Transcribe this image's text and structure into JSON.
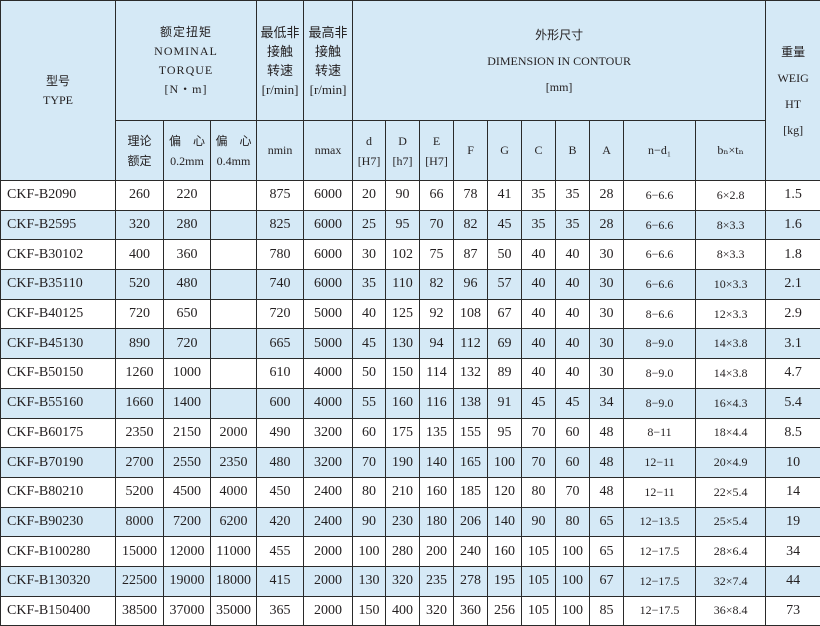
{
  "header": {
    "type_cn": "型号",
    "type_en": "TYPE",
    "torque_cn": "额定扭矩",
    "torque_en1": "NOMINAL",
    "torque_en2": "TORQUE",
    "torque_unit": "[N・m]",
    "nmin_cn1": "最低非",
    "nmin_cn2": "接触",
    "nmin_cn3": "转速",
    "nmin_unit": "[r/min]",
    "nmax_cn1": "最高非",
    "nmax_cn2": "接触",
    "nmax_cn3": "转速",
    "nmax_unit": "[r/min]",
    "dim_cn": "外形尺寸",
    "dim_en": "DIMENSION IN CONTOUR",
    "dim_unit": "[mm]",
    "weight_cn": "重量",
    "weight_en1": "WEIG",
    "weight_en2": "HT",
    "weight_unit": "[kg]",
    "sub": {
      "t_theory1": "理论",
      "t_theory2": "额定",
      "t_ecc1": "偏　心",
      "t_ecc1b": "0.2mm",
      "t_ecc2": "偏　心",
      "t_ecc2b": "0.4mm",
      "nmin": "nmin",
      "nmax": "nmax",
      "d": "d",
      "d_tol": "[H7]",
      "D": "D",
      "D_tol": "[h7]",
      "E": "E",
      "E_tol": "[H7]",
      "F": "F",
      "G": "G",
      "C": "C",
      "B": "B",
      "A": "A",
      "nd": "n−d₁",
      "bt": "bₙ×tₙ"
    }
  },
  "rows": [
    [
      "CKF-B2090",
      "260",
      "220",
      "",
      "875",
      "6000",
      "20",
      "90",
      "66",
      "78",
      "41",
      "35",
      "35",
      "28",
      "6−6.6",
      "6×2.8",
      "1.5"
    ],
    [
      "CKF-B2595",
      "320",
      "280",
      "",
      "825",
      "6000",
      "25",
      "95",
      "70",
      "82",
      "45",
      "35",
      "35",
      "28",
      "6−6.6",
      "8×3.3",
      "1.6"
    ],
    [
      "CKF-B30102",
      "400",
      "360",
      "",
      "780",
      "6000",
      "30",
      "102",
      "75",
      "87",
      "50",
      "40",
      "40",
      "30",
      "6−6.6",
      "8×3.3",
      "1.8"
    ],
    [
      "CKF-B35110",
      "520",
      "480",
      "",
      "740",
      "6000",
      "35",
      "110",
      "82",
      "96",
      "57",
      "40",
      "40",
      "30",
      "6−6.6",
      "10×3.3",
      "2.1"
    ],
    [
      "CKF-B40125",
      "720",
      "650",
      "",
      "720",
      "5000",
      "40",
      "125",
      "92",
      "108",
      "67",
      "40",
      "40",
      "30",
      "8−6.6",
      "12×3.3",
      "2.9"
    ],
    [
      "CKF-B45130",
      "890",
      "720",
      "",
      "665",
      "5000",
      "45",
      "130",
      "94",
      "112",
      "69",
      "40",
      "40",
      "30",
      "8−9.0",
      "14×3.8",
      "3.1"
    ],
    [
      "CKF-B50150",
      "1260",
      "1000",
      "",
      "610",
      "4000",
      "50",
      "150",
      "114",
      "132",
      "89",
      "40",
      "40",
      "30",
      "8−9.0",
      "14×3.8",
      "4.7"
    ],
    [
      "CKF-B55160",
      "1660",
      "1400",
      "",
      "600",
      "4000",
      "55",
      "160",
      "116",
      "138",
      "91",
      "45",
      "45",
      "34",
      "8−9.0",
      "16×4.3",
      "5.4"
    ],
    [
      "CKF-B60175",
      "2350",
      "2150",
      "2000",
      "490",
      "3200",
      "60",
      "175",
      "135",
      "155",
      "95",
      "70",
      "60",
      "48",
      "8−11",
      "18×4.4",
      "8.5"
    ],
    [
      "CKF-B70190",
      "2700",
      "2550",
      "2350",
      "480",
      "3200",
      "70",
      "190",
      "140",
      "165",
      "100",
      "70",
      "60",
      "48",
      "12−11",
      "20×4.9",
      "10"
    ],
    [
      "CKF-B80210",
      "5200",
      "4500",
      "4000",
      "450",
      "2400",
      "80",
      "210",
      "160",
      "185",
      "120",
      "80",
      "70",
      "48",
      "12−11",
      "22×5.4",
      "14"
    ],
    [
      "CKF-B90230",
      "8000",
      "7200",
      "6200",
      "420",
      "2400",
      "90",
      "230",
      "180",
      "206",
      "140",
      "90",
      "80",
      "65",
      "12−13.5",
      "25×5.4",
      "19"
    ],
    [
      "CKF-B100280",
      "15000",
      "12000",
      "11000",
      "455",
      "2000",
      "100",
      "280",
      "200",
      "240",
      "160",
      "105",
      "100",
      "65",
      "12−17.5",
      "28×6.4",
      "34"
    ],
    [
      "CKF-B130320",
      "22500",
      "19000",
      "18000",
      "415",
      "2000",
      "130",
      "320",
      "235",
      "278",
      "195",
      "105",
      "100",
      "67",
      "12−17.5",
      "32×7.4",
      "44"
    ],
    [
      "CKF-B150400",
      "38500",
      "37000",
      "35000",
      "365",
      "2000",
      "150",
      "400",
      "320",
      "360",
      "256",
      "105",
      "100",
      "85",
      "12−17.5",
      "36×8.4",
      "73"
    ]
  ],
  "colors": {
    "header_bg": "#d5e9f6",
    "alt_row_bg": "#d5e9f6",
    "border": "#2a2a2a"
  }
}
